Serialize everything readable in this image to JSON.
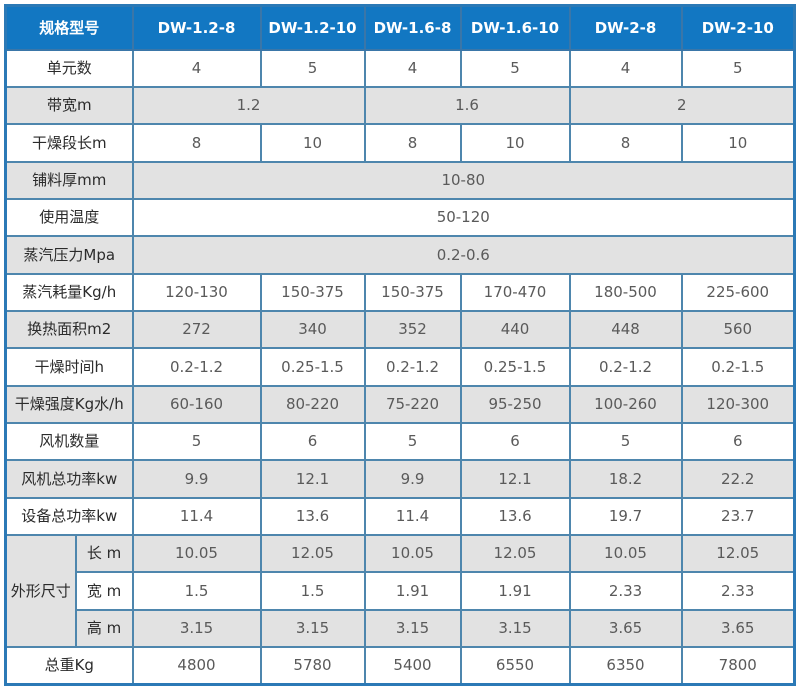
{
  "colors": {
    "header_bg": "#1277c2",
    "header_text": "#ffffff",
    "grid_line": "#4e86ad",
    "outer_border": "#2b79b6",
    "row_alt_gray": "#e2e2e2",
    "row_white": "#ffffff",
    "label_text": "#2b2b2b",
    "value_text": "#5a5a5a"
  },
  "header": {
    "label": "规格型号",
    "models": [
      "DW-1.2-8",
      "DW-1.2-10",
      "DW-1.6-8",
      "DW-1.6-10",
      "DW-2-8",
      "DW-2-10"
    ]
  },
  "rows": [
    {
      "label": "单元数",
      "colspan": 1,
      "cells": [
        "4",
        "5",
        "4",
        "5",
        "4",
        "5"
      ]
    },
    {
      "label": "带宽m",
      "colspan": 2,
      "cells": [
        "1.2",
        "1.6",
        "2"
      ]
    },
    {
      "label": "干燥段长m",
      "colspan": 1,
      "cells": [
        "8",
        "10",
        "8",
        "10",
        "8",
        "10"
      ]
    },
    {
      "label": "铺料厚mm",
      "colspan": 6,
      "cells": [
        "10-80"
      ]
    },
    {
      "label": "使用温度",
      "colspan": 6,
      "cells": [
        "50-120"
      ]
    },
    {
      "label": "蒸汽压力Mpa",
      "colspan": 6,
      "cells": [
        "0.2-0.6"
      ]
    },
    {
      "label": "蒸汽耗量Kg/h",
      "colspan": 1,
      "cells": [
        "120-130",
        "150-375",
        "150-375",
        "170-470",
        "180-500",
        "225-600"
      ]
    },
    {
      "label": "换热面积m2",
      "colspan": 1,
      "cells": [
        "272",
        "340",
        "352",
        "440",
        "448",
        "560"
      ]
    },
    {
      "label": "干燥时间h",
      "colspan": 1,
      "cells": [
        "0.2-1.2",
        "0.25-1.5",
        "0.2-1.2",
        "0.25-1.5",
        "0.2-1.2",
        "0.2-1.5"
      ]
    },
    {
      "label": "干燥强度Kg水/h",
      "colspan": 1,
      "cells": [
        "60-160",
        "80-220",
        "75-220",
        "95-250",
        "100-260",
        "120-300"
      ]
    },
    {
      "label": "风机数量",
      "colspan": 1,
      "cells": [
        "5",
        "6",
        "5",
        "6",
        "5",
        "6"
      ]
    },
    {
      "label": "风机总功率kw",
      "colspan": 1,
      "cells": [
        "9.9",
        "12.1",
        "9.9",
        "12.1",
        "18.2",
        "22.2"
      ]
    },
    {
      "label": "设备总功率kw",
      "colspan": 1,
      "cells": [
        "11.4",
        "13.6",
        "11.4",
        "13.6",
        "19.7",
        "23.7"
      ]
    }
  ],
  "dimensions": {
    "group_label": "外形尺寸",
    "rows": [
      {
        "label": "长 m",
        "cells": [
          "10.05",
          "12.05",
          "10.05",
          "12.05",
          "10.05",
          "12.05"
        ]
      },
      {
        "label": "宽 m",
        "cells": [
          "1.5",
          "1.5",
          "1.91",
          "1.91",
          "2.33",
          "2.33"
        ]
      },
      {
        "label": "高 m",
        "cells": [
          "3.15",
          "3.15",
          "3.15",
          "3.15",
          "3.65",
          "3.65"
        ]
      }
    ]
  },
  "total": {
    "label": "总重Kg",
    "cells": [
      "4800",
      "5780",
      "5400",
      "6550",
      "6350",
      "7800"
    ]
  }
}
